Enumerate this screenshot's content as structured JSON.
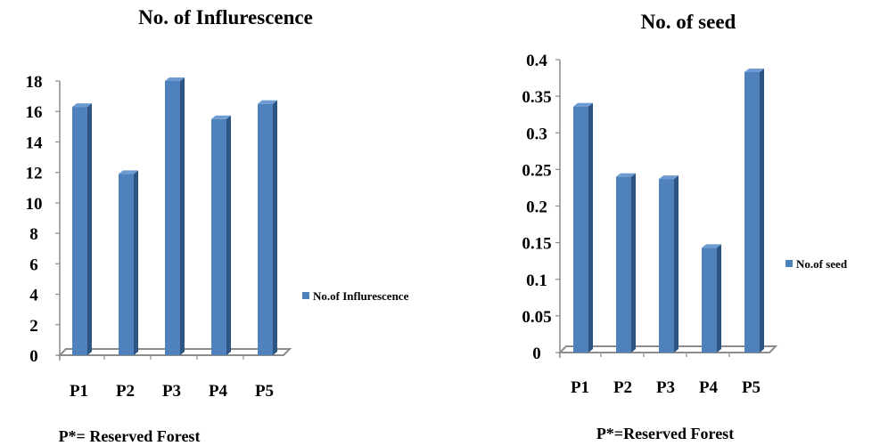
{
  "colors": {
    "bar_front": "#4F81BD",
    "bar_side": "#2E5483",
    "bar_top": "#6E9BD1",
    "axis": "#8C8C8C"
  },
  "chart_data": [
    {
      "type": "bar",
      "title": "No. of Influrescence",
      "categories": [
        "P1",
        "P2",
        "P3",
        "P4",
        "P5"
      ],
      "series": [
        {
          "name": "No.of Influrescence",
          "values": [
            16.3,
            11.9,
            18.0,
            15.5,
            16.5
          ]
        }
      ],
      "ylim": [
        0,
        18
      ],
      "yticks": [
        "0",
        "2",
        "4",
        "6",
        "8",
        "10",
        "12",
        "14",
        "16",
        "18"
      ],
      "xlabel": "P*= Reserved Forest",
      "ylabel": "",
      "legend": "right",
      "grid": false
    },
    {
      "type": "bar",
      "title": "No. of seed",
      "categories": [
        "P1",
        "P2",
        "P3",
        "P4",
        "P5"
      ],
      "series": [
        {
          "name": "No.of seed",
          "values": [
            0.336,
            0.24,
            0.237,
            0.143,
            0.383
          ]
        }
      ],
      "ylim": [
        0,
        0.4
      ],
      "yticks": [
        "0",
        "0.05",
        "0.1",
        "0.15",
        "0.2",
        "0.25",
        "0.3",
        "0.35",
        "0.4"
      ],
      "xlabel": "P*=Reserved Forest",
      "ylabel": "",
      "legend": "right",
      "grid": false
    }
  ]
}
